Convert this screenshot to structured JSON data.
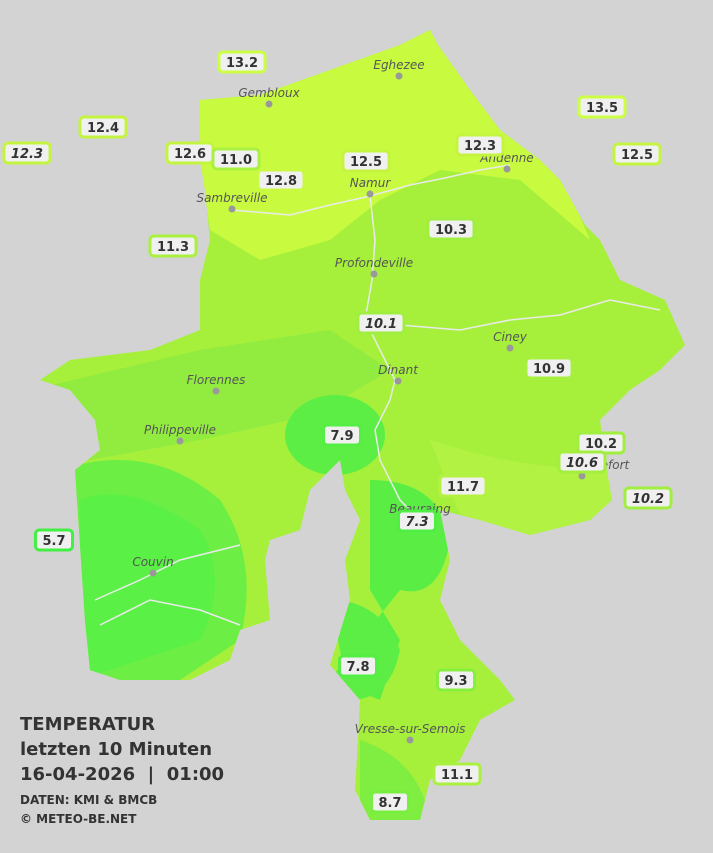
{
  "readings": [
    {
      "text": "13.2",
      "color": "#ccff44",
      "italic": false
    },
    {
      "text": "12.4",
      "color": "#c4f440",
      "italic": false
    },
    {
      "text": "12.3",
      "color": "#c4f440",
      "italic": true
    },
    {
      "text": "12.6",
      "color": "#c4f440",
      "italic": false
    },
    {
      "text": "11.0",
      "color": "#aaf040",
      "italic": false
    },
    {
      "text": "12.8",
      "color": "#c8fa42",
      "italic": false
    },
    {
      "text": "12.5",
      "color": "#c4f440",
      "italic": false
    },
    {
      "text": "12.3",
      "color": "#c4f440",
      "italic": false
    },
    {
      "text": "13.5",
      "color": "#ccff44",
      "italic": false
    },
    {
      "text": "12.5",
      "color": "#c4f440",
      "italic": false
    },
    {
      "text": "11.3",
      "color": "#aaf040",
      "italic": false
    },
    {
      "text": "10.3",
      "color": "#a0ee40",
      "italic": false
    },
    {
      "text": "10.1",
      "color": "#a0ee40",
      "italic": true
    },
    {
      "text": "10.9",
      "color": "#a8f040",
      "italic": false
    },
    {
      "text": "7.9",
      "color": "#55ee44",
      "italic": false
    },
    {
      "text": "10.2",
      "color": "#a0ee40",
      "italic": false
    },
    {
      "text": "10.6",
      "color": "#a4ee40",
      "italic": true
    },
    {
      "text": "10.2",
      "color": "#a0ee40",
      "italic": true
    },
    {
      "text": "11.7",
      "color": "#b4f242",
      "italic": false
    },
    {
      "text": "5.7",
      "color": "#44ee44",
      "italic": false
    },
    {
      "text": "7.3",
      "color": "#50ee44",
      "italic": true
    },
    {
      "text": "7.8",
      "color": "#55ee44",
      "italic": false
    },
    {
      "text": "9.3",
      "color": "#88ee40",
      "italic": false
    },
    {
      "text": "11.1",
      "color": "#aaf040",
      "italic": false
    },
    {
      "text": "8.7",
      "color": "#77ee40",
      "italic": false
    }
  ],
  "towns": [
    "Eghezee",
    "Gembloux",
    "Andenne",
    "Namur",
    "Sambreville",
    "Profondeville",
    "Ciney",
    "Dinant",
    "Florennes",
    "Philippeville",
    "Couvin",
    "Vresse-sur-Semois",
    "Rochefort",
    "Beauraing"
  ],
  "legend": {
    "title": "TEMPERATUR",
    "period": "letzten 10 Minuten",
    "timestamp": "16-04-2026  |  01:00",
    "source": "DATEN: KMI & BMCB",
    "copyright": "© METEO-BE.NET"
  }
}
